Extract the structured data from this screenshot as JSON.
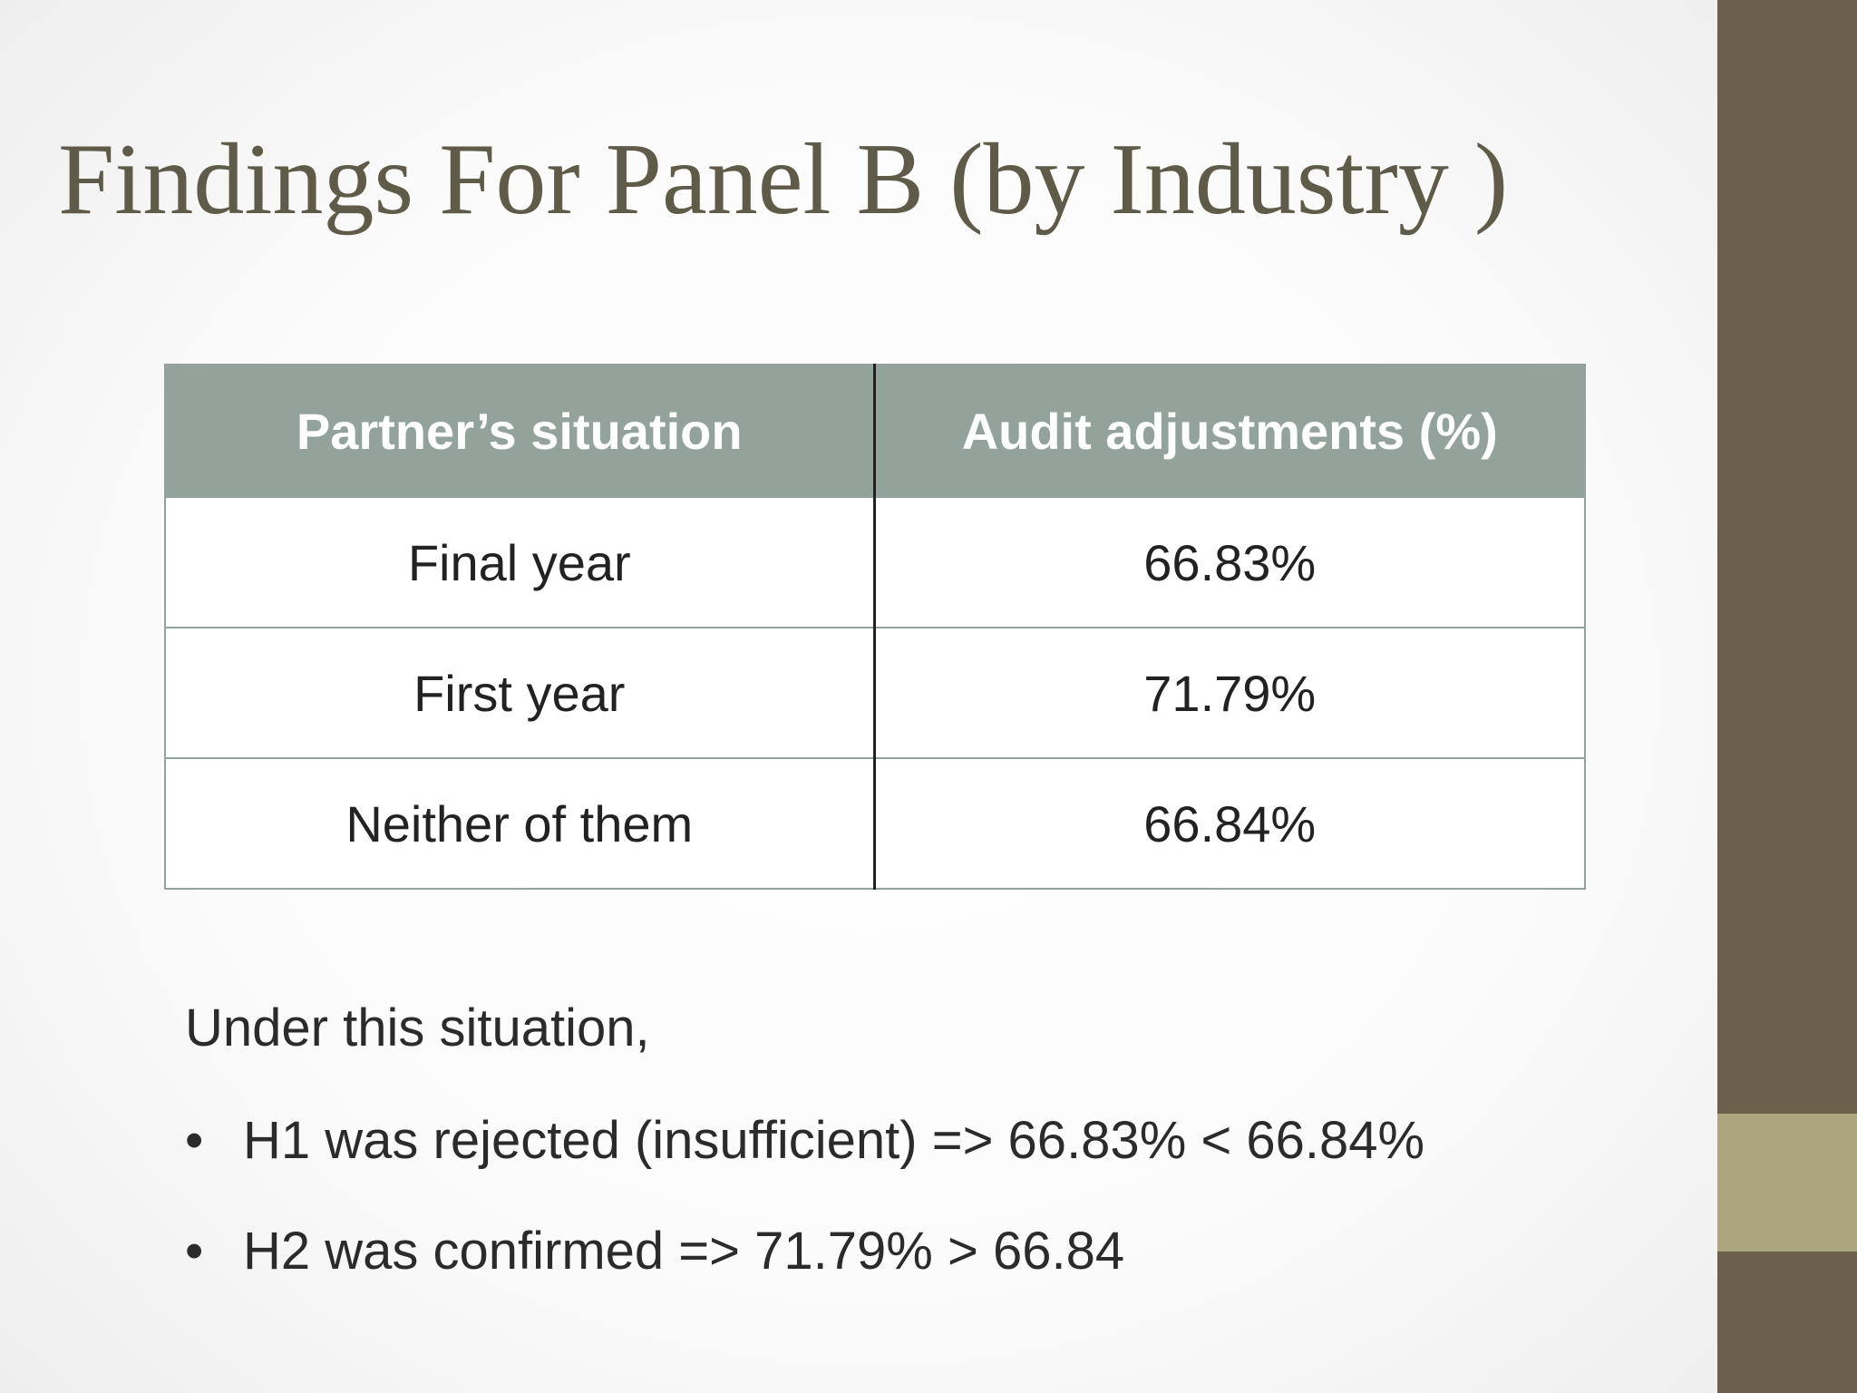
{
  "slide": {
    "title": "Findings For Panel B (by Industry )",
    "table": {
      "headers": [
        "Partner’s situation",
        "Audit adjustments (%)"
      ],
      "rows": [
        [
          "Final year",
          "66.83%"
        ],
        [
          "First year",
          "71.79%"
        ],
        [
          "Neither of them",
          "66.84%"
        ]
      ]
    },
    "intro": "Under this situation,",
    "bullet_symbol": "•",
    "bullets": [
      "H1 was rejected (insufficient) => 66.83% < 66.84%",
      "H2 was confirmed => 71.79% > 66.84"
    ],
    "colors": {
      "title": "#605a48",
      "header_bg": "#93a39b",
      "side_bar": "#6b5f49",
      "side_accent": "#aba67d"
    }
  }
}
